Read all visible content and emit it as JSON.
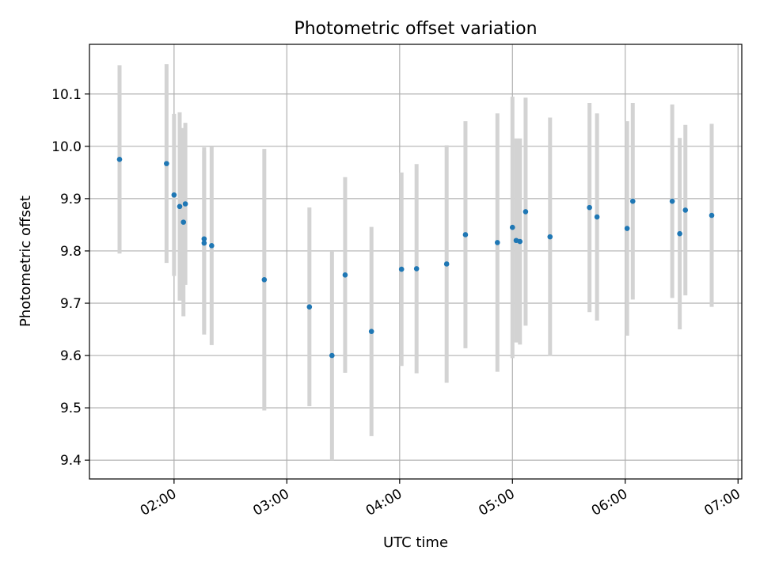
{
  "chart_data": {
    "type": "scatter",
    "title": "Photometric offset variation",
    "xlabel": "UTC time",
    "ylabel": "Photometric offset",
    "xlim": [
      "01:15",
      "07:02"
    ],
    "ylim": [
      9.364,
      10.195
    ],
    "grid": true,
    "xticks": [
      "02:00",
      "03:00",
      "04:00",
      "05:00",
      "06:00",
      "07:00"
    ],
    "yticks": [
      "9.4",
      "9.5",
      "9.6",
      "9.7",
      "9.8",
      "9.9",
      "10.0",
      "10.1"
    ],
    "colors": {
      "point": "#1f77b4",
      "errorbar": "#d3d3d3",
      "grid": "#b0b0b0"
    },
    "points": [
      {
        "t": "01:31",
        "y": 9.975,
        "err": 0.18
      },
      {
        "t": "01:56",
        "y": 9.967,
        "err": 0.19
      },
      {
        "t": "02:00",
        "y": 9.907,
        "err": 0.155
      },
      {
        "t": "02:03",
        "y": 9.885,
        "err": 0.18
      },
      {
        "t": "02:05",
        "y": 9.855,
        "err": 0.18
      },
      {
        "t": "02:06",
        "y": 9.89,
        "err": 0.155
      },
      {
        "t": "02:16",
        "y": 9.823,
        "err": 0.175
      },
      {
        "t": "02:16",
        "y": 9.815,
        "err": 0.175
      },
      {
        "t": "02:20",
        "y": 9.81,
        "err": 0.19
      },
      {
        "t": "02:48",
        "y": 9.745,
        "err": 0.25
      },
      {
        "t": "03:12",
        "y": 9.693,
        "err": 0.19
      },
      {
        "t": "03:24",
        "y": 9.6,
        "err": 0.2
      },
      {
        "t": "03:31",
        "y": 9.754,
        "err": 0.187
      },
      {
        "t": "03:45",
        "y": 9.646,
        "err": 0.2
      },
      {
        "t": "04:01",
        "y": 9.765,
        "err": 0.185
      },
      {
        "t": "04:09",
        "y": 9.766,
        "err": 0.2
      },
      {
        "t": "04:25",
        "y": 9.775,
        "err": 0.227
      },
      {
        "t": "04:35",
        "y": 9.831,
        "err": 0.217
      },
      {
        "t": "04:52",
        "y": 9.816,
        "err": 0.247
      },
      {
        "t": "05:00",
        "y": 9.845,
        "err": 0.25
      },
      {
        "t": "05:02",
        "y": 9.82,
        "err": 0.195
      },
      {
        "t": "05:04",
        "y": 9.818,
        "err": 0.197
      },
      {
        "t": "05:07",
        "y": 9.875,
        "err": 0.218
      },
      {
        "t": "05:20",
        "y": 9.827,
        "err": 0.228
      },
      {
        "t": "05:41",
        "y": 9.883,
        "err": 0.2
      },
      {
        "t": "05:45",
        "y": 9.865,
        "err": 0.198
      },
      {
        "t": "06:01",
        "y": 9.843,
        "err": 0.205
      },
      {
        "t": "06:04",
        "y": 9.895,
        "err": 0.188
      },
      {
        "t": "06:25",
        "y": 9.895,
        "err": 0.185
      },
      {
        "t": "06:29",
        "y": 9.833,
        "err": 0.183
      },
      {
        "t": "06:32",
        "y": 9.878,
        "err": 0.163
      },
      {
        "t": "06:46",
        "y": 9.868,
        "err": 0.175
      }
    ]
  }
}
